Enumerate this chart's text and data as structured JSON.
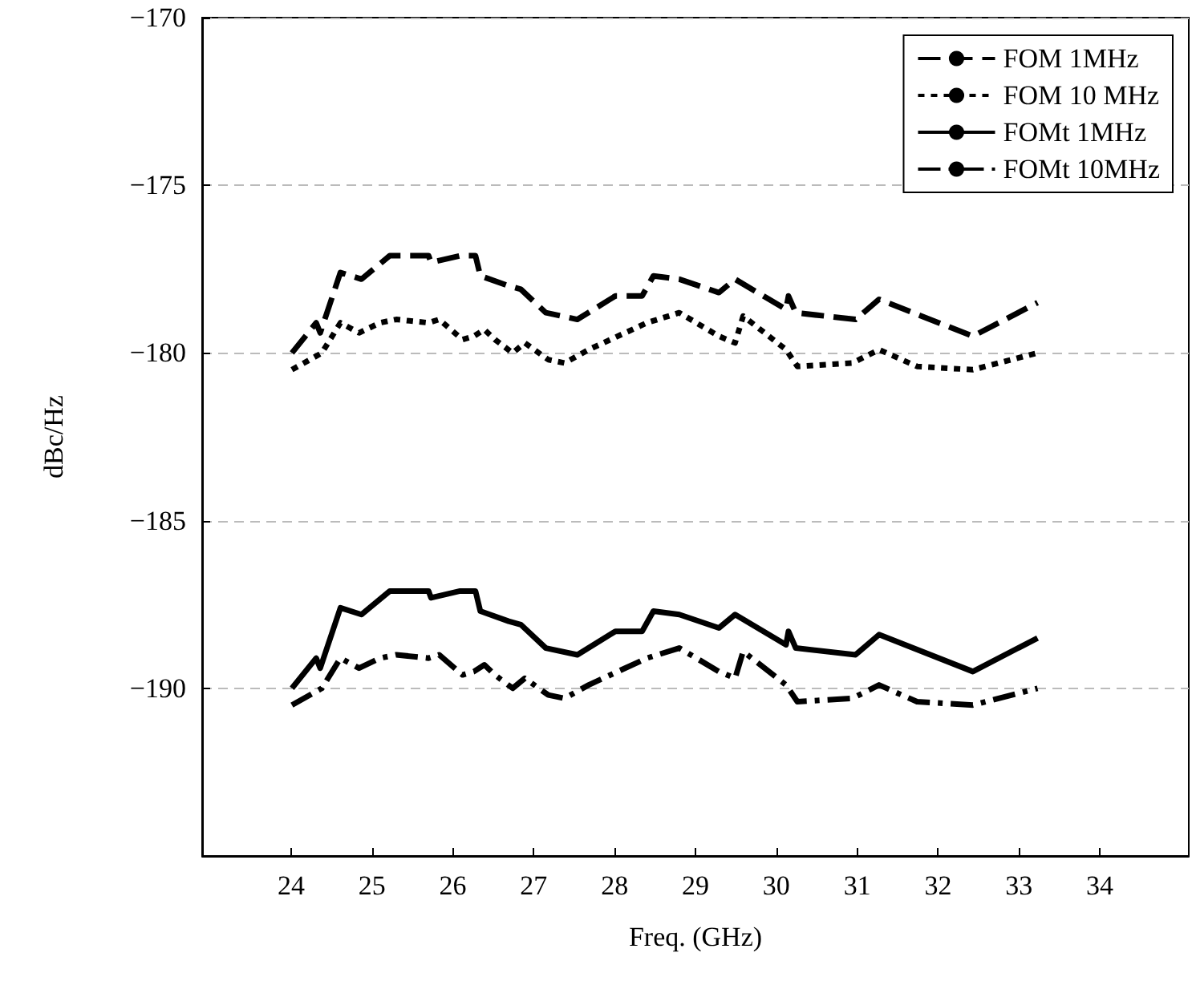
{
  "chart_data": {
    "type": "line",
    "xlabel": "Freq. (GHz)",
    "ylabel": "dBc/Hz",
    "xlim": [
      22.9,
      35.1
    ],
    "xticks": [
      24,
      25,
      26,
      27,
      28,
      29,
      30,
      31,
      32,
      33,
      34
    ],
    "ylim": [
      -195,
      -170
    ],
    "yticks": [
      -190,
      -185,
      -180,
      -175,
      -170
    ],
    "grid": "y",
    "legend": "top right",
    "marker": "none",
    "series": [
      {
        "name": "FOM 1MHz",
        "color": "#000000",
        "line_style": "dashed",
        "x": [
          24.01,
          24.31,
          24.36,
          24.61,
          24.87,
          25.22,
          25.7,
          25.73,
          26.09,
          26.28,
          26.34,
          26.69,
          26.84,
          27.15,
          27.54,
          28.01,
          28.34,
          28.48,
          28.8,
          29.29,
          29.49,
          30.12,
          30.15,
          30.24,
          30.98,
          31.27,
          32.43,
          33.23
        ],
        "values": [
          -180.0,
          -179.1,
          -179.4,
          -177.6,
          -177.8,
          -177.1,
          -177.1,
          -177.3,
          -177.1,
          -177.1,
          -177.7,
          -178.0,
          -178.1,
          -178.8,
          -179.0,
          -178.3,
          -178.3,
          -177.7,
          -177.8,
          -178.2,
          -177.8,
          -178.7,
          -178.3,
          -178.8,
          -179.0,
          -178.4,
          -179.5,
          -178.5
        ]
      },
      {
        "name": "FOM 10 MHz",
        "color": "#000000",
        "line_style": "dotted",
        "x": [
          24.01,
          24.38,
          24.61,
          24.84,
          25.1,
          25.3,
          25.7,
          25.83,
          26.12,
          26.26,
          26.39,
          26.52,
          26.74,
          26.89,
          27.18,
          27.38,
          27.68,
          28.4,
          28.8,
          29.29,
          29.49,
          29.59,
          30.12,
          30.26,
          30.94,
          31.27,
          31.74,
          32.43,
          33.23
        ],
        "values": [
          -180.5,
          -180.0,
          -179.1,
          -179.4,
          -179.1,
          -179.0,
          -179.1,
          -179.0,
          -179.6,
          -179.5,
          -179.3,
          -179.6,
          -180.0,
          -179.7,
          -180.2,
          -180.3,
          -179.9,
          -179.1,
          -178.8,
          -179.5,
          -179.7,
          -178.9,
          -179.9,
          -180.4,
          -180.3,
          -179.9,
          -180.4,
          -180.5,
          -180.0
        ]
      },
      {
        "name": "FOMt 1MHz",
        "color": "#000000",
        "line_style": "solid",
        "x": [
          24.01,
          24.31,
          24.36,
          24.61,
          24.87,
          25.22,
          25.7,
          25.73,
          26.09,
          26.28,
          26.34,
          26.69,
          26.84,
          27.15,
          27.54,
          28.01,
          28.34,
          28.48,
          28.8,
          29.29,
          29.49,
          30.12,
          30.15,
          30.24,
          30.98,
          31.27,
          32.43,
          33.23
        ],
        "values": [
          -190.0,
          -189.1,
          -189.4,
          -187.6,
          -187.8,
          -187.1,
          -187.1,
          -187.3,
          -187.1,
          -187.1,
          -187.7,
          -188.0,
          -188.1,
          -188.8,
          -189.0,
          -188.3,
          -188.3,
          -187.7,
          -187.8,
          -188.2,
          -187.8,
          -188.7,
          -188.3,
          -188.8,
          -189.0,
          -188.4,
          -189.5,
          -188.5
        ]
      },
      {
        "name": "FOMt 10MHz",
        "color": "#000000",
        "line_style": "dashdot",
        "x": [
          24.01,
          24.38,
          24.61,
          24.84,
          25.1,
          25.3,
          25.7,
          25.83,
          26.12,
          26.26,
          26.39,
          26.52,
          26.74,
          26.89,
          27.18,
          27.38,
          27.68,
          28.4,
          28.8,
          29.29,
          29.49,
          29.59,
          30.12,
          30.26,
          30.94,
          31.27,
          31.74,
          32.43,
          33.23
        ],
        "values": [
          -190.5,
          -190.0,
          -189.1,
          -189.4,
          -189.1,
          -189.0,
          -189.1,
          -189.0,
          -189.6,
          -189.5,
          -189.3,
          -189.6,
          -190.0,
          -189.7,
          -190.2,
          -190.3,
          -189.9,
          -189.1,
          -188.8,
          -189.5,
          -189.7,
          -188.9,
          -189.9,
          -190.4,
          -190.3,
          -189.9,
          -190.4,
          -190.5,
          -190.0
        ]
      }
    ]
  }
}
